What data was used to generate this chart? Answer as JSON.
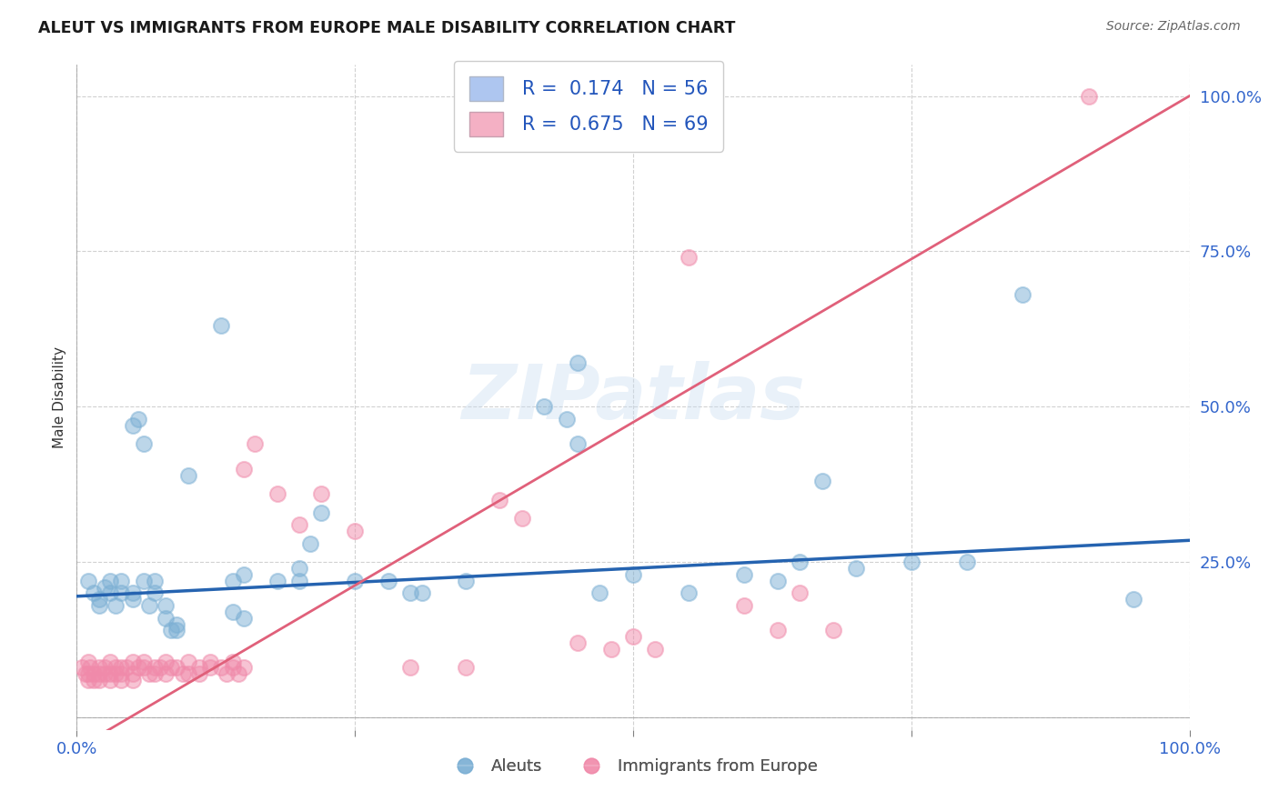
{
  "title": "ALEUT VS IMMIGRANTS FROM EUROPE MALE DISABILITY CORRELATION CHART",
  "source": "Source: ZipAtlas.com",
  "ylabel": "Male Disability",
  "y_ticks": [
    0.0,
    0.25,
    0.5,
    0.75,
    1.0
  ],
  "y_tick_labels": [
    "",
    "25.0%",
    "50.0%",
    "75.0%",
    "100.0%"
  ],
  "blue_color": "#7bafd4",
  "pink_color": "#f08aaa",
  "blue_line_color": "#2563b0",
  "pink_line_color": "#e0607a",
  "watermark": "ZIPatlas",
  "background": "#ffffff",
  "aleuts_points": [
    [
      0.01,
      0.22
    ],
    [
      0.015,
      0.2
    ],
    [
      0.02,
      0.19
    ],
    [
      0.02,
      0.18
    ],
    [
      0.025,
      0.21
    ],
    [
      0.03,
      0.2
    ],
    [
      0.03,
      0.22
    ],
    [
      0.035,
      0.18
    ],
    [
      0.04,
      0.2
    ],
    [
      0.04,
      0.22
    ],
    [
      0.05,
      0.2
    ],
    [
      0.05,
      0.19
    ],
    [
      0.055,
      0.48
    ],
    [
      0.06,
      0.22
    ],
    [
      0.06,
      0.44
    ],
    [
      0.065,
      0.18
    ],
    [
      0.07,
      0.22
    ],
    [
      0.07,
      0.2
    ],
    [
      0.08,
      0.18
    ],
    [
      0.08,
      0.16
    ],
    [
      0.085,
      0.14
    ],
    [
      0.09,
      0.15
    ],
    [
      0.09,
      0.14
    ],
    [
      0.1,
      0.39
    ],
    [
      0.05,
      0.47
    ],
    [
      0.13,
      0.63
    ],
    [
      0.14,
      0.22
    ],
    [
      0.14,
      0.17
    ],
    [
      0.15,
      0.23
    ],
    [
      0.15,
      0.16
    ],
    [
      0.18,
      0.22
    ],
    [
      0.2,
      0.24
    ],
    [
      0.2,
      0.22
    ],
    [
      0.21,
      0.28
    ],
    [
      0.22,
      0.33
    ],
    [
      0.25,
      0.22
    ],
    [
      0.28,
      0.22
    ],
    [
      0.3,
      0.2
    ],
    [
      0.31,
      0.2
    ],
    [
      0.35,
      0.22
    ],
    [
      0.42,
      0.5
    ],
    [
      0.44,
      0.48
    ],
    [
      0.45,
      0.57
    ],
    [
      0.45,
      0.44
    ],
    [
      0.47,
      0.2
    ],
    [
      0.5,
      0.23
    ],
    [
      0.55,
      0.2
    ],
    [
      0.6,
      0.23
    ],
    [
      0.63,
      0.22
    ],
    [
      0.65,
      0.25
    ],
    [
      0.67,
      0.38
    ],
    [
      0.7,
      0.24
    ],
    [
      0.75,
      0.25
    ],
    [
      0.8,
      0.25
    ],
    [
      0.85,
      0.68
    ],
    [
      0.95,
      0.19
    ]
  ],
  "immigrants_points": [
    [
      0.005,
      0.08
    ],
    [
      0.008,
      0.07
    ],
    [
      0.01,
      0.09
    ],
    [
      0.01,
      0.07
    ],
    [
      0.01,
      0.06
    ],
    [
      0.012,
      0.08
    ],
    [
      0.015,
      0.07
    ],
    [
      0.015,
      0.06
    ],
    [
      0.02,
      0.08
    ],
    [
      0.02,
      0.07
    ],
    [
      0.02,
      0.06
    ],
    [
      0.025,
      0.08
    ],
    [
      0.025,
      0.07
    ],
    [
      0.03,
      0.09
    ],
    [
      0.03,
      0.07
    ],
    [
      0.03,
      0.06
    ],
    [
      0.035,
      0.08
    ],
    [
      0.035,
      0.07
    ],
    [
      0.04,
      0.08
    ],
    [
      0.04,
      0.07
    ],
    [
      0.04,
      0.06
    ],
    [
      0.045,
      0.08
    ],
    [
      0.05,
      0.09
    ],
    [
      0.05,
      0.07
    ],
    [
      0.05,
      0.06
    ],
    [
      0.055,
      0.08
    ],
    [
      0.06,
      0.09
    ],
    [
      0.06,
      0.08
    ],
    [
      0.065,
      0.07
    ],
    [
      0.07,
      0.08
    ],
    [
      0.07,
      0.07
    ],
    [
      0.075,
      0.08
    ],
    [
      0.08,
      0.09
    ],
    [
      0.08,
      0.07
    ],
    [
      0.085,
      0.08
    ],
    [
      0.09,
      0.08
    ],
    [
      0.095,
      0.07
    ],
    [
      0.1,
      0.09
    ],
    [
      0.1,
      0.07
    ],
    [
      0.11,
      0.08
    ],
    [
      0.11,
      0.07
    ],
    [
      0.12,
      0.09
    ],
    [
      0.12,
      0.08
    ],
    [
      0.13,
      0.08
    ],
    [
      0.135,
      0.07
    ],
    [
      0.14,
      0.09
    ],
    [
      0.14,
      0.08
    ],
    [
      0.145,
      0.07
    ],
    [
      0.15,
      0.4
    ],
    [
      0.15,
      0.08
    ],
    [
      0.16,
      0.44
    ],
    [
      0.18,
      0.36
    ],
    [
      0.2,
      0.31
    ],
    [
      0.22,
      0.36
    ],
    [
      0.25,
      0.3
    ],
    [
      0.3,
      0.08
    ],
    [
      0.35,
      0.08
    ],
    [
      0.38,
      0.35
    ],
    [
      0.4,
      0.32
    ],
    [
      0.45,
      0.12
    ],
    [
      0.48,
      0.11
    ],
    [
      0.5,
      0.13
    ],
    [
      0.52,
      0.11
    ],
    [
      0.55,
      0.74
    ],
    [
      0.6,
      0.18
    ],
    [
      0.63,
      0.14
    ],
    [
      0.65,
      0.2
    ],
    [
      0.68,
      0.14
    ],
    [
      0.91,
      1.0
    ]
  ]
}
